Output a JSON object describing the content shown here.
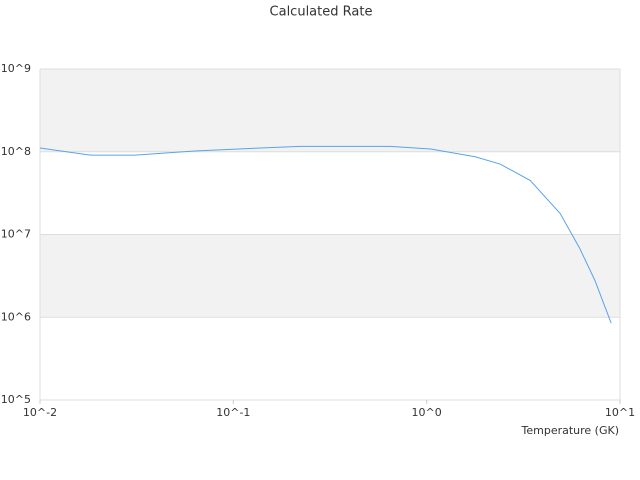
{
  "chart_data": {
    "type": "line",
    "title": "Calculated Rate",
    "x_label": "Temperature (GK)",
    "xscale": "log",
    "yscale": "log",
    "xlim": [
      0.01,
      10
    ],
    "ylim": [
      100000,
      1000000000
    ],
    "xticks": [
      {
        "value": 0.01,
        "label": "10^-2"
      },
      {
        "value": 0.1,
        "label": "10^-1"
      },
      {
        "value": 1,
        "label": "10^0"
      },
      {
        "value": 10,
        "label": "10^1"
      }
    ],
    "yticks": [
      {
        "value": 100000,
        "label": "10^5"
      },
      {
        "value": 1000000,
        "label": "10^6"
      },
      {
        "value": 10000000,
        "label": "10^7"
      },
      {
        "value": 100000000,
        "label": "10^8"
      },
      {
        "value": 1000000000,
        "label": "10^9"
      }
    ],
    "grid": true,
    "bands": true,
    "band_color": "#f2f2f2",
    "x": [
      0.01,
      0.0182,
      0.031,
      0.063,
      0.138,
      0.221,
      0.646,
      1.05,
      1.78,
      2.4,
      3.43,
      4.9,
      6.17,
      7.41,
      9.0
    ],
    "series": [
      {
        "color": "#5aa3e8",
        "values": [
          111000000,
          91000000,
          91000000,
          102000000,
          111000000,
          116000000,
          116000000,
          108000000,
          87000000,
          71000000,
          45000000,
          18000000,
          6900000,
          2800000,
          850000
        ]
      }
    ]
  }
}
